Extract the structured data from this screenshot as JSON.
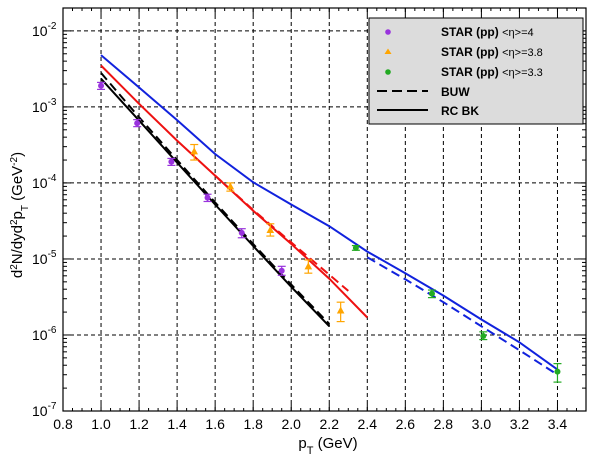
{
  "chart_data": {
    "type": "scatter",
    "xlabel": {
      "main": "p",
      "sub": "T",
      "rest": " (GeV)"
    },
    "ylabel": {
      "p1": "d",
      "s1": "2",
      "p2": "N/dyd",
      "s2": "2",
      "p3": "p",
      "sub": "T",
      "p4": " (GeV",
      "s3": "-2",
      "p5": ")"
    },
    "xlim": [
      0.8,
      3.55
    ],
    "ylim": [
      1e-07,
      0.02
    ],
    "yscale": "log",
    "grid": true,
    "legend_position": "top-right",
    "x_ticks": [
      "0.8",
      "1.0",
      "1.2",
      "1.4",
      "1.6",
      "1.8",
      "2.0",
      "2.2",
      "2.4",
      "2.6",
      "2.8",
      "3.0",
      "3.2",
      "3.4"
    ],
    "y_ticks": [
      {
        "base": "10",
        "exp": "-7"
      },
      {
        "base": "10",
        "exp": "-6"
      },
      {
        "base": "10",
        "exp": "-5"
      },
      {
        "base": "10",
        "exp": "-4"
      },
      {
        "base": "10",
        "exp": "-3"
      },
      {
        "base": "10",
        "exp": "-2"
      }
    ],
    "legend": [
      {
        "label": "STAR (pp)",
        "eta": "<η>=4",
        "marker": "circle",
        "color": "#9933dd"
      },
      {
        "label": "STAR (pp)",
        "eta": "<η>=3.8",
        "marker": "triangle",
        "color": "#ffa500"
      },
      {
        "label": "STAR (pp)",
        "eta": "<η>=3.3",
        "marker": "circle",
        "color": "#22aa22"
      },
      {
        "label": "BUW",
        "line": "dashed",
        "color": "#000000"
      },
      {
        "label": "RC BK",
        "line": "solid",
        "color": "#000000"
      }
    ],
    "data_series": [
      {
        "color": "#9933dd",
        "marker": "circle",
        "points": [
          {
            "x": 1.0,
            "y": 0.0019,
            "ylo": 0.0017,
            "yhi": 0.0021
          },
          {
            "x": 1.19,
            "y": 0.00061,
            "ylo": 0.00055,
            "yhi": 0.00068
          },
          {
            "x": 1.37,
            "y": 0.00019,
            "ylo": 0.00017,
            "yhi": 0.00021
          },
          {
            "x": 1.56,
            "y": 6.4e-05,
            "ylo": 5.7e-05,
            "yhi": 7.1e-05
          },
          {
            "x": 1.74,
            "y": 2.2e-05,
            "ylo": 1.9e-05,
            "yhi": 2.5e-05
          },
          {
            "x": 1.95,
            "y": 7e-06,
            "ylo": 6.1e-06,
            "yhi": 8e-06
          }
        ]
      },
      {
        "color": "#ffa500",
        "marker": "triangle",
        "points": [
          {
            "x": 1.49,
            "y": 0.00026,
            "ylo": 0.0002,
            "yhi": 0.00032
          },
          {
            "x": 1.68,
            "y": 9e-05,
            "ylo": 7.8e-05,
            "yhi": 0.0001
          },
          {
            "x": 1.89,
            "y": 2.4e-05,
            "ylo": 2e-05,
            "yhi": 2.9e-05
          },
          {
            "x": 2.09,
            "y": 8e-06,
            "ylo": 6.5e-06,
            "yhi": 9.7e-06
          },
          {
            "x": 2.26,
            "y": 2.1e-06,
            "ylo": 1.5e-06,
            "yhi": 2.7e-06
          }
        ]
      },
      {
        "color": "#22aa22",
        "marker": "circle",
        "points": [
          {
            "x": 2.34,
            "y": 1.4e-05,
            "ylo": 1.3e-05,
            "yhi": 1.5e-05
          },
          {
            "x": 2.74,
            "y": 3.5e-06,
            "ylo": 3.1e-06,
            "yhi": 3.9e-06
          },
          {
            "x": 3.01,
            "y": 9.7e-07,
            "ylo": 8.7e-07,
            "yhi": 1.1e-06
          },
          {
            "x": 3.4,
            "y": 3.3e-07,
            "ylo": 2.4e-07,
            "yhi": 4.2e-07
          }
        ]
      }
    ],
    "curves": [
      {
        "color": "#000000",
        "dash": "solid",
        "points": [
          [
            1.0,
            0.00235
          ],
          [
            1.2,
            0.00066
          ],
          [
            1.4,
            0.000185
          ],
          [
            1.6,
            5.2e-05
          ],
          [
            1.8,
            1.48e-05
          ],
          [
            2.0,
            4.3e-06
          ],
          [
            2.2,
            1.3e-06
          ]
        ]
      },
      {
        "color": "#000000",
        "dash": "dashed",
        "points": [
          [
            1.0,
            0.0028
          ],
          [
            1.2,
            0.00073
          ],
          [
            1.4,
            0.0002
          ],
          [
            1.6,
            5.55e-05
          ],
          [
            1.8,
            1.57e-05
          ],
          [
            2.0,
            4.6e-06
          ],
          [
            2.2,
            1.4e-06
          ]
        ]
      },
      {
        "color": "#ee1111",
        "dash": "solid",
        "points": [
          [
            1.0,
            0.0035
          ],
          [
            1.2,
            0.0011
          ],
          [
            1.4,
            0.00036
          ],
          [
            1.6,
            0.000125
          ],
          [
            1.8,
            4.3e-05
          ],
          [
            2.0,
            1.58e-05
          ],
          [
            2.2,
            5.5e-06
          ],
          [
            2.4,
            1.7e-06
          ]
        ]
      },
      {
        "color": "#ee1111",
        "dash": "dashed",
        "points": [
          [
            1.6,
            0.000125
          ],
          [
            1.8,
            4.4e-05
          ],
          [
            2.0,
            1.65e-05
          ],
          [
            2.2,
            6.2e-06
          ],
          [
            2.3,
            3.8e-06
          ]
        ]
      },
      {
        "color": "#1122dd",
        "dash": "solid",
        "points": [
          [
            1.0,
            0.0048
          ],
          [
            1.2,
            0.0018
          ],
          [
            1.4,
            0.00067
          ],
          [
            1.6,
            0.00024
          ],
          [
            1.8,
            0.000102
          ],
          [
            2.0,
            5.2e-05
          ],
          [
            2.2,
            2.7e-05
          ],
          [
            2.4,
            1.25e-05
          ],
          [
            2.6,
            6.5e-06
          ],
          [
            2.8,
            3.3e-06
          ],
          [
            3.0,
            1.6e-06
          ],
          [
            3.2,
            8e-07
          ],
          [
            3.4,
            3.5e-07
          ]
        ]
      },
      {
        "color": "#1122dd",
        "dash": "dashed",
        "points": [
          [
            2.4,
            1.05e-05
          ],
          [
            2.6,
            5.4e-06
          ],
          [
            2.8,
            2.7e-06
          ],
          [
            3.0,
            1.3e-06
          ],
          [
            3.2,
            6.3e-07
          ],
          [
            3.4,
            3e-07
          ]
        ]
      }
    ]
  }
}
